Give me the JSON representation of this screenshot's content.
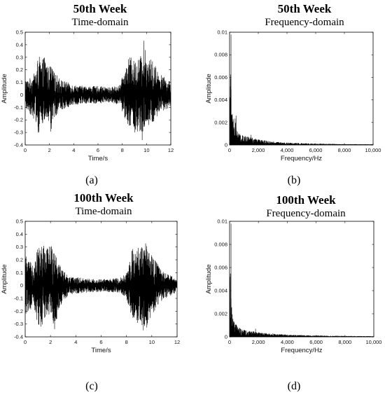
{
  "chart_data": [
    {
      "panel": "a",
      "type": "line",
      "title": "50th Week",
      "subtitle": "Time-domain",
      "caption": "(a)",
      "xlabel": "Time/s",
      "ylabel": "Amplitude",
      "xlim": [
        0,
        12
      ],
      "ylim": [
        -0.4,
        0.5
      ],
      "xticks": [
        0,
        2,
        4,
        6,
        8,
        10,
        12
      ],
      "xtick_labels": [
        "0",
        "2",
        "4",
        "6",
        "8",
        "10",
        "12"
      ],
      "yticks": [
        -0.4,
        -0.3,
        -0.2,
        -0.1,
        0,
        0.1,
        0.2,
        0.3,
        0.4,
        0.5
      ],
      "ytick_labels": [
        "-0.4",
        "-0.3",
        "-0.2",
        "-0.1",
        "0",
        "0.1",
        "0.2",
        "0.3",
        "0.4",
        "0.5"
      ],
      "grid": false,
      "series": [
        {
          "color": "#000000",
          "envelope": {
            "t": [
              0,
              0.2,
              0.6,
              0.9,
              1.1,
              1.3,
              1.6,
              1.9,
              2.1,
              2.4,
              3.0,
              4.0,
              5.0,
              6.0,
              7.0,
              7.8,
              8.2,
              8.6,
              9.0,
              9.4,
              9.6,
              9.8,
              10.1,
              10.6,
              11.0,
              11.5,
              12.0
            ],
            "upper": [
              0.13,
              0.12,
              0.15,
              0.2,
              0.33,
              0.25,
              0.32,
              0.22,
              0.24,
              0.18,
              0.12,
              0.08,
              0.07,
              0.07,
              0.06,
              0.08,
              0.2,
              0.31,
              0.27,
              0.3,
              0.33,
              0.44,
              0.3,
              0.27,
              0.18,
              0.14,
              0.1
            ],
            "lower": [
              -0.13,
              -0.12,
              -0.18,
              -0.22,
              -0.33,
              -0.25,
              -0.22,
              -0.2,
              -0.32,
              -0.18,
              -0.12,
              -0.08,
              -0.07,
              -0.07,
              -0.06,
              -0.08,
              -0.2,
              -0.25,
              -0.3,
              -0.38,
              -0.4,
              -0.3,
              -0.27,
              -0.22,
              -0.16,
              -0.12,
              -0.1
            ]
          }
        }
      ]
    },
    {
      "panel": "b",
      "type": "line",
      "title": "50th Week",
      "subtitle": "Frequency-domain",
      "caption": "(b)",
      "xlabel": "Frequency/Hz",
      "ylabel": "Amplitude",
      "xlim": [
        0,
        10000
      ],
      "ylim": [
        0,
        0.01
      ],
      "xticks": [
        0,
        2000,
        4000,
        6000,
        8000,
        10000
      ],
      "xtick_labels": [
        "0",
        "2,000",
        "4,000",
        "6,000",
        "8,000",
        "10,000"
      ],
      "yticks": [
        0,
        0.002,
        0.004,
        0.006,
        0.008,
        0.01
      ],
      "ytick_labels": [
        "0",
        "0.002",
        "0.004",
        "0.006",
        "0.008",
        "0.01"
      ],
      "grid": false,
      "series": [
        {
          "color": "#000000",
          "envelope": {
            "f": [
              0,
              50,
              100,
              200,
              300,
              400,
              500,
              700,
              1000,
              1500,
              2000,
              3000,
              4000,
              5000,
              6000,
              8000,
              10000
            ],
            "upper": [
              0.001,
              0.0095,
              0.0055,
              0.003,
              0.0018,
              0.0026,
              0.0014,
              0.001,
              0.0008,
              0.0007,
              0.0005,
              0.0003,
              0.00022,
              0.00016,
              0.00012,
              8e-05,
              6e-05
            ]
          },
          "spikes": [
            {
              "f": 100,
              "value": 0.0098
            },
            {
              "f": 450,
              "value": 0.0026
            },
            {
              "f": 1500,
              "value": 0.0009
            },
            {
              "f": 2000,
              "value": 0.0005
            }
          ]
        }
      ]
    },
    {
      "panel": "c",
      "type": "line",
      "title": "100th Week",
      "subtitle": "Time-domain",
      "caption": "(c)",
      "xlabel": "Time/s",
      "ylabel": "Amplitude",
      "xlim": [
        0,
        12
      ],
      "ylim": [
        -0.4,
        0.5
      ],
      "xticks": [
        0,
        2,
        4,
        6,
        8,
        10,
        12
      ],
      "xtick_labels": [
        "0",
        "2",
        "4",
        "6",
        "8",
        "10",
        "12"
      ],
      "yticks": [
        -0.4,
        -0.3,
        -0.2,
        -0.1,
        0,
        0.1,
        0.2,
        0.3,
        0.4,
        0.5
      ],
      "ytick_labels": [
        "-0.4",
        "-0.3",
        "-0.2",
        "-0.1",
        "0",
        "0.1",
        "0.2",
        "0.3",
        "0.4",
        "0.5"
      ],
      "grid": false,
      "series": [
        {
          "color": "#000000",
          "envelope": {
            "t": [
              0,
              0.3,
              0.7,
              1.0,
              1.3,
              1.6,
              2.0,
              2.3,
              2.6,
              3.0,
              3.5,
              4.5,
              5.5,
              6.5,
              7.5,
              8.0,
              8.4,
              8.8,
              9.2,
              9.5,
              9.8,
              10.2,
              10.6,
              11.0,
              11.5,
              12.0
            ],
            "upper": [
              0.25,
              0.18,
              0.2,
              0.3,
              0.33,
              0.3,
              0.32,
              0.33,
              0.2,
              0.12,
              0.07,
              0.06,
              0.05,
              0.05,
              0.06,
              0.1,
              0.28,
              0.31,
              0.3,
              0.34,
              0.25,
              0.22,
              0.14,
              0.1,
              0.08,
              0.04
            ],
            "lower": [
              -0.25,
              -0.18,
              -0.2,
              -0.3,
              -0.33,
              -0.27,
              -0.22,
              -0.37,
              -0.2,
              -0.12,
              -0.07,
              -0.06,
              -0.05,
              -0.05,
              -0.06,
              -0.1,
              -0.24,
              -0.3,
              -0.34,
              -0.37,
              -0.28,
              -0.22,
              -0.14,
              -0.1,
              -0.08,
              -0.05
            ]
          }
        }
      ]
    },
    {
      "panel": "d",
      "type": "line",
      "title": "100th Week",
      "subtitle": "Frequency-domain",
      "caption": "(d)",
      "xlabel": "Frequency/Hz",
      "ylabel": "Amplitude",
      "xlim": [
        0,
        10000
      ],
      "ylim": [
        0,
        0.01
      ],
      "xticks": [
        0,
        2000,
        4000,
        6000,
        8000,
        10000
      ],
      "xtick_labels": [
        "0",
        "2,000",
        "4,000",
        "6,000",
        "8,000",
        "10,000"
      ],
      "yticks": [
        0,
        0.002,
        0.004,
        0.006,
        0.008,
        0.01
      ],
      "ytick_labels": [
        "0",
        "0.002",
        "0.004",
        "0.006",
        "0.008",
        "0.01"
      ],
      "grid": false,
      "series": [
        {
          "color": "#000000",
          "envelope": {
            "f": [
              0,
              50,
              100,
              200,
              300,
              400,
              500,
              700,
              1000,
              1500,
              2000,
              3000,
              4000,
              5000,
              6000,
              8000,
              10000
            ],
            "upper": [
              0.001,
              0.0098,
              0.0035,
              0.0018,
              0.0014,
              0.0012,
              0.001,
              0.0008,
              0.0006,
              0.0005,
              0.0004,
              0.00028,
              0.0002,
              0.00016,
              0.00012,
              8e-05,
              6e-05
            ]
          },
          "spikes": [
            {
              "f": 100,
              "value": 0.0098
            },
            {
              "f": 1800,
              "value": 0.0007
            },
            {
              "f": 3000,
              "value": 0.0003
            }
          ]
        }
      ]
    }
  ]
}
